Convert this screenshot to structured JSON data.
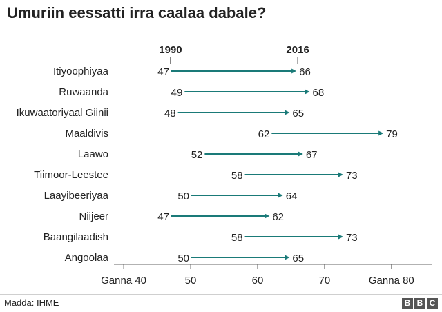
{
  "page": {
    "title": "Umuriin eessatti irra caalaa dabale?",
    "source": "Madda: IHME",
    "logo_letters": [
      "B",
      "B",
      "C"
    ]
  },
  "chart_data": {
    "type": "dumbbell",
    "title": "Umuriin eessatti irra caalaa dabale?",
    "series": [
      {
        "name": "1990"
      },
      {
        "name": "2016"
      }
    ],
    "categories": [
      "Itiyoophiyaa",
      "Ruwaanda",
      "Ikuwaatoriyaal Giinii",
      "Maaldivis",
      "Laawo",
      "Tiimoor-Leestee",
      "Laayibeeriyaa",
      "Niijeer",
      "Baangilaadish",
      "Angoolaa"
    ],
    "start_values": [
      47,
      49,
      48,
      62,
      52,
      58,
      50,
      47,
      58,
      50
    ],
    "end_values": [
      66,
      68,
      65,
      79,
      67,
      73,
      64,
      62,
      73,
      65
    ],
    "xlim": [
      37,
      86
    ],
    "x_ticks": [
      40,
      50,
      60,
      70,
      80
    ],
    "x_tick_labels": [
      "Ganna 40",
      "50",
      "60",
      "70",
      "Ganna 80"
    ],
    "colors": {
      "arrow": "#1a7a78",
      "axis": "#666666",
      "text": "#222222"
    }
  }
}
